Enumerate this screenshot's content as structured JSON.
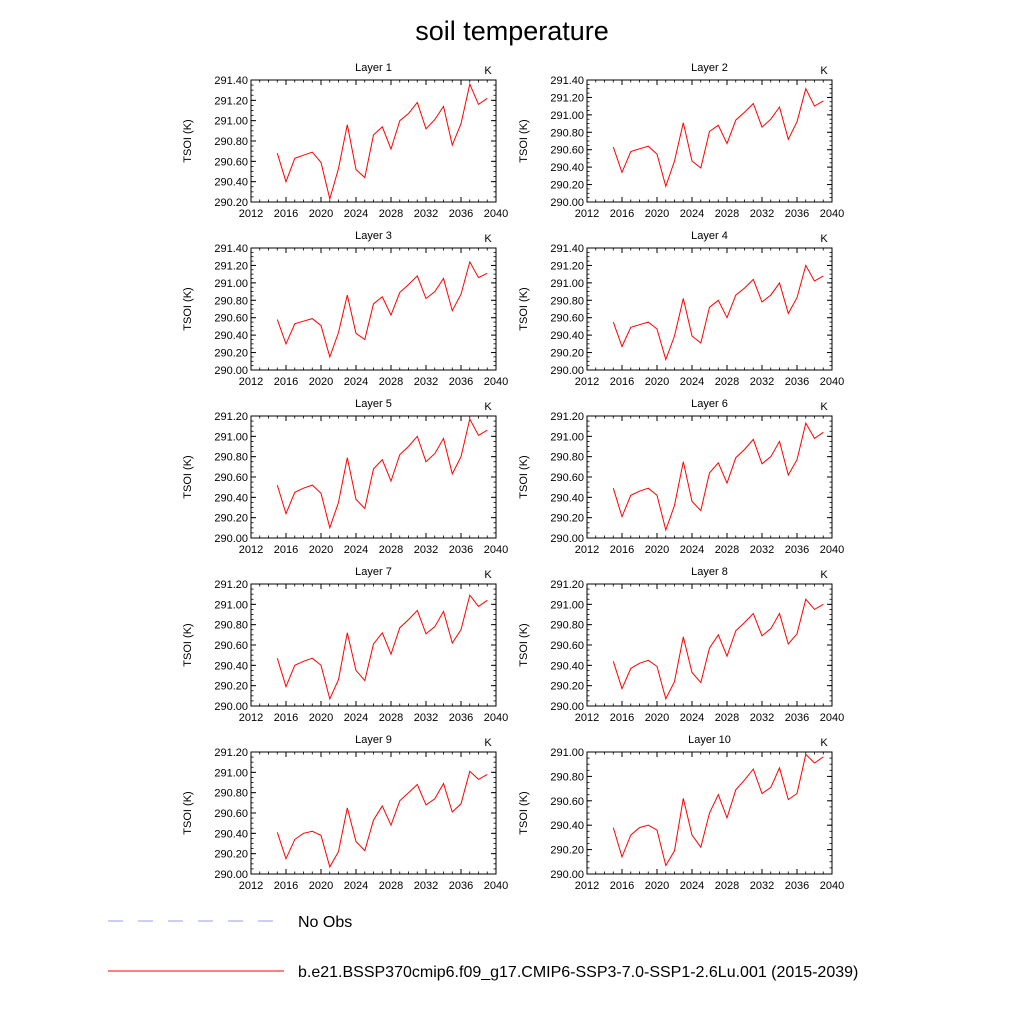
{
  "title": "soil temperature",
  "legend": [
    {
      "label": "No Obs",
      "color": "#9999ff",
      "dash": true
    },
    {
      "label": "b.e21.BSSP370cmip6.f09_g17.CMIP6-SSP3-7.0-SSP1-2.6Lu.001 (2015-2039)",
      "color": "#ff0000",
      "dash": false
    }
  ],
  "chart_data": [
    {
      "type": "line",
      "title": "Layer 1",
      "units": "K",
      "ylabel": "TSOI  (K)",
      "xlim": [
        2012,
        2040
      ],
      "xticks": [
        2012,
        2016,
        2020,
        2024,
        2028,
        2032,
        2036,
        2040
      ],
      "ylim": [
        290.2,
        291.4
      ],
      "yticks": [
        "290.20",
        "290.40",
        "290.60",
        "290.80",
        "291.00",
        "291.20",
        "291.40"
      ],
      "x": [
        2015,
        2016,
        2017,
        2018,
        2019,
        2020,
        2021,
        2022,
        2023,
        2024,
        2025,
        2026,
        2027,
        2028,
        2029,
        2030,
        2031,
        2032,
        2033,
        2034,
        2035,
        2036,
        2037,
        2038,
        2039
      ],
      "series": [
        {
          "values": [
            290.68,
            290.4,
            290.63,
            290.66,
            290.69,
            290.59,
            290.23,
            290.53,
            290.96,
            290.52,
            290.44,
            290.86,
            290.94,
            290.72,
            291.0,
            291.07,
            291.18,
            290.92,
            291.01,
            291.14,
            290.76,
            290.97,
            291.36,
            291.16,
            291.22
          ]
        }
      ]
    },
    {
      "type": "line",
      "title": "Layer 2",
      "units": "K",
      "ylabel": "TSOI  (K)",
      "xlim": [
        2012,
        2040
      ],
      "xticks": [
        2012,
        2016,
        2020,
        2024,
        2028,
        2032,
        2036,
        2040
      ],
      "ylim": [
        290.0,
        291.4
      ],
      "yticks": [
        "290.00",
        "290.20",
        "290.40",
        "290.60",
        "290.80",
        "291.00",
        "291.20",
        "291.40"
      ],
      "x": [
        2015,
        2016,
        2017,
        2018,
        2019,
        2020,
        2021,
        2022,
        2023,
        2024,
        2025,
        2026,
        2027,
        2028,
        2029,
        2030,
        2031,
        2032,
        2033,
        2034,
        2035,
        2036,
        2037,
        2038,
        2039
      ],
      "series": [
        {
          "values": [
            290.63,
            290.34,
            290.58,
            290.61,
            290.64,
            290.55,
            290.18,
            290.47,
            290.91,
            290.47,
            290.39,
            290.81,
            290.88,
            290.67,
            290.94,
            291.03,
            291.13,
            290.86,
            290.95,
            291.09,
            290.72,
            290.92,
            291.3,
            291.1,
            291.16
          ]
        }
      ]
    },
    {
      "type": "line",
      "title": "Layer 3",
      "units": "K",
      "ylabel": "TSOI  (K)",
      "xlim": [
        2012,
        2040
      ],
      "xticks": [
        2012,
        2016,
        2020,
        2024,
        2028,
        2032,
        2036,
        2040
      ],
      "ylim": [
        290.0,
        291.4
      ],
      "yticks": [
        "290.00",
        "290.20",
        "290.40",
        "290.60",
        "290.80",
        "291.00",
        "291.20",
        "291.40"
      ],
      "x": [
        2015,
        2016,
        2017,
        2018,
        2019,
        2020,
        2021,
        2022,
        2023,
        2024,
        2025,
        2026,
        2027,
        2028,
        2029,
        2030,
        2031,
        2032,
        2033,
        2034,
        2035,
        2036,
        2037,
        2038,
        2039
      ],
      "series": [
        {
          "values": [
            290.58,
            290.3,
            290.53,
            290.56,
            290.59,
            290.51,
            290.15,
            290.43,
            290.86,
            290.42,
            290.35,
            290.76,
            290.84,
            290.63,
            290.89,
            290.98,
            291.08,
            290.82,
            290.9,
            291.05,
            290.68,
            290.87,
            291.24,
            291.06,
            291.11
          ]
        }
      ]
    },
    {
      "type": "line",
      "title": "Layer 4",
      "units": "K",
      "ylabel": "TSOI  (K)",
      "xlim": [
        2012,
        2040
      ],
      "xticks": [
        2012,
        2016,
        2020,
        2024,
        2028,
        2032,
        2036,
        2040
      ],
      "ylim": [
        290.0,
        291.4
      ],
      "yticks": [
        "290.00",
        "290.20",
        "290.40",
        "290.60",
        "290.80",
        "291.00",
        "291.20",
        "291.40"
      ],
      "x": [
        2015,
        2016,
        2017,
        2018,
        2019,
        2020,
        2021,
        2022,
        2023,
        2024,
        2025,
        2026,
        2027,
        2028,
        2029,
        2030,
        2031,
        2032,
        2033,
        2034,
        2035,
        2036,
        2037,
        2038,
        2039
      ],
      "series": [
        {
          "values": [
            290.55,
            290.27,
            290.49,
            290.52,
            290.55,
            290.47,
            290.12,
            290.39,
            290.82,
            290.39,
            290.31,
            290.72,
            290.8,
            290.6,
            290.86,
            290.94,
            291.04,
            290.78,
            290.86,
            291.0,
            290.65,
            290.83,
            291.2,
            291.02,
            291.08
          ]
        }
      ]
    },
    {
      "type": "line",
      "title": "Layer 5",
      "units": "K",
      "ylabel": "TSOI  (K)",
      "xlim": [
        2012,
        2040
      ],
      "xticks": [
        2012,
        2016,
        2020,
        2024,
        2028,
        2032,
        2036,
        2040
      ],
      "ylim": [
        290.0,
        291.2
      ],
      "yticks": [
        "290.00",
        "290.20",
        "290.40",
        "290.60",
        "290.80",
        "291.00",
        "291.20"
      ],
      "x": [
        2015,
        2016,
        2017,
        2018,
        2019,
        2020,
        2021,
        2022,
        2023,
        2024,
        2025,
        2026,
        2027,
        2028,
        2029,
        2030,
        2031,
        2032,
        2033,
        2034,
        2035,
        2036,
        2037,
        2038,
        2039
      ],
      "series": [
        {
          "values": [
            290.52,
            290.24,
            290.45,
            290.49,
            290.52,
            290.44,
            290.1,
            290.35,
            290.79,
            290.38,
            290.29,
            290.68,
            290.77,
            290.56,
            290.82,
            290.9,
            291.0,
            290.75,
            290.83,
            290.98,
            290.63,
            290.8,
            291.17,
            291.01,
            291.06
          ]
        }
      ]
    },
    {
      "type": "line",
      "title": "Layer 6",
      "units": "K",
      "ylabel": "TSOI  (K)",
      "xlim": [
        2012,
        2040
      ],
      "xticks": [
        2012,
        2016,
        2020,
        2024,
        2028,
        2032,
        2036,
        2040
      ],
      "ylim": [
        290.0,
        291.2
      ],
      "yticks": [
        "290.00",
        "290.20",
        "290.40",
        "290.60",
        "290.80",
        "291.00",
        "291.20"
      ],
      "x": [
        2015,
        2016,
        2017,
        2018,
        2019,
        2020,
        2021,
        2022,
        2023,
        2024,
        2025,
        2026,
        2027,
        2028,
        2029,
        2030,
        2031,
        2032,
        2033,
        2034,
        2035,
        2036,
        2037,
        2038,
        2039
      ],
      "series": [
        {
          "values": [
            290.49,
            290.21,
            290.42,
            290.46,
            290.49,
            290.42,
            290.08,
            290.32,
            290.75,
            290.36,
            290.27,
            290.64,
            290.74,
            290.54,
            290.79,
            290.87,
            290.97,
            290.73,
            290.8,
            290.95,
            290.62,
            290.77,
            291.13,
            290.98,
            291.04
          ]
        }
      ]
    },
    {
      "type": "line",
      "title": "Layer 7",
      "units": "K",
      "ylabel": "TSOI  (K)",
      "xlim": [
        2012,
        2040
      ],
      "xticks": [
        2012,
        2016,
        2020,
        2024,
        2028,
        2032,
        2036,
        2040
      ],
      "ylim": [
        290.0,
        291.2
      ],
      "yticks": [
        "290.00",
        "290.20",
        "290.40",
        "290.60",
        "290.80",
        "291.00",
        "291.20"
      ],
      "x": [
        2015,
        2016,
        2017,
        2018,
        2019,
        2020,
        2021,
        2022,
        2023,
        2024,
        2025,
        2026,
        2027,
        2028,
        2029,
        2030,
        2031,
        2032,
        2033,
        2034,
        2035,
        2036,
        2037,
        2038,
        2039
      ],
      "series": [
        {
          "values": [
            290.47,
            290.19,
            290.4,
            290.44,
            290.47,
            290.4,
            290.07,
            290.26,
            290.72,
            290.35,
            290.25,
            290.61,
            290.72,
            290.51,
            290.77,
            290.85,
            290.94,
            290.71,
            290.78,
            290.93,
            290.62,
            290.75,
            291.09,
            290.98,
            291.04
          ]
        }
      ]
    },
    {
      "type": "line",
      "title": "Layer 8",
      "units": "K",
      "ylabel": "TSOI  (K)",
      "xlim": [
        2012,
        2040
      ],
      "xticks": [
        2012,
        2016,
        2020,
        2024,
        2028,
        2032,
        2036,
        2040
      ],
      "ylim": [
        290.0,
        291.2
      ],
      "yticks": [
        "290.00",
        "290.20",
        "290.40",
        "290.60",
        "290.80",
        "291.00",
        "291.20"
      ],
      "x": [
        2015,
        2016,
        2017,
        2018,
        2019,
        2020,
        2021,
        2022,
        2023,
        2024,
        2025,
        2026,
        2027,
        2028,
        2029,
        2030,
        2031,
        2032,
        2033,
        2034,
        2035,
        2036,
        2037,
        2038,
        2039
      ],
      "series": [
        {
          "values": [
            290.44,
            290.17,
            290.37,
            290.42,
            290.45,
            290.39,
            290.07,
            290.24,
            290.68,
            290.33,
            290.23,
            290.57,
            290.7,
            290.49,
            290.74,
            290.82,
            290.91,
            290.69,
            290.76,
            290.91,
            290.61,
            290.71,
            291.05,
            290.95,
            291.0
          ]
        }
      ]
    },
    {
      "type": "line",
      "title": "Layer 9",
      "units": "K",
      "ylabel": "TSOI  (K)",
      "xlim": [
        2012,
        2040
      ],
      "xticks": [
        2012,
        2016,
        2020,
        2024,
        2028,
        2032,
        2036,
        2040
      ],
      "ylim": [
        290.0,
        291.2
      ],
      "yticks": [
        "290.00",
        "290.20",
        "290.40",
        "290.60",
        "290.80",
        "291.00",
        "291.20"
      ],
      "x": [
        2015,
        2016,
        2017,
        2018,
        2019,
        2020,
        2021,
        2022,
        2023,
        2024,
        2025,
        2026,
        2027,
        2028,
        2029,
        2030,
        2031,
        2032,
        2033,
        2034,
        2035,
        2036,
        2037,
        2038,
        2039
      ],
      "series": [
        {
          "values": [
            290.41,
            290.15,
            290.34,
            290.4,
            290.42,
            290.38,
            290.07,
            290.22,
            290.65,
            290.32,
            290.23,
            290.53,
            290.67,
            290.48,
            290.72,
            290.8,
            290.88,
            290.68,
            290.74,
            290.89,
            290.61,
            290.69,
            291.01,
            290.93,
            290.98
          ]
        }
      ]
    },
    {
      "type": "line",
      "title": "Layer 10",
      "units": "K",
      "ylabel": "TSOI  (K)",
      "xlim": [
        2012,
        2040
      ],
      "xticks": [
        2012,
        2016,
        2020,
        2024,
        2028,
        2032,
        2036,
        2040
      ],
      "ylim": [
        290.0,
        291.0
      ],
      "yticks": [
        "290.00",
        "290.20",
        "290.40",
        "290.60",
        "290.80",
        "291.00"
      ],
      "x": [
        2015,
        2016,
        2017,
        2018,
        2019,
        2020,
        2021,
        2022,
        2023,
        2024,
        2025,
        2026,
        2027,
        2028,
        2029,
        2030,
        2031,
        2032,
        2033,
        2034,
        2035,
        2036,
        2037,
        2038,
        2039
      ],
      "series": [
        {
          "values": [
            290.38,
            290.14,
            290.32,
            290.38,
            290.4,
            290.36,
            290.07,
            290.19,
            290.62,
            290.32,
            290.22,
            290.5,
            290.65,
            290.46,
            290.69,
            290.77,
            290.86,
            290.66,
            290.71,
            290.87,
            290.61,
            290.66,
            290.98,
            290.91,
            290.96
          ]
        }
      ]
    }
  ]
}
